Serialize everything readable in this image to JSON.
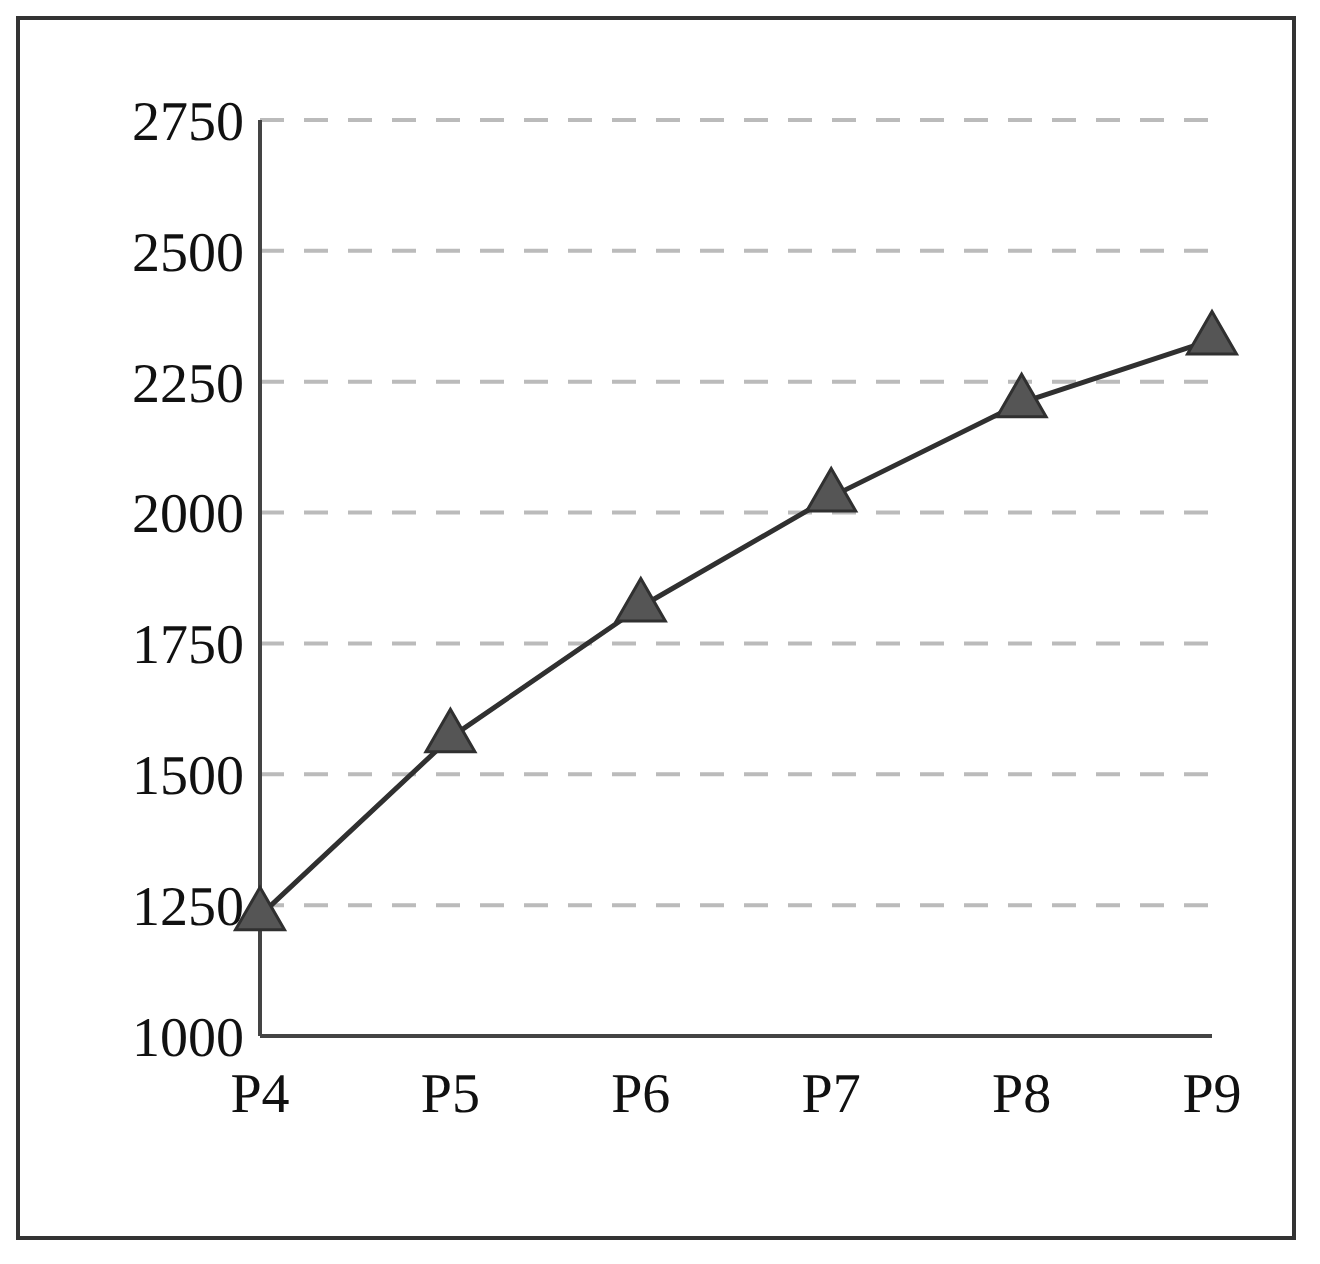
{
  "chart_data": {
    "type": "line",
    "categories": [
      "P4",
      "P5",
      "P6",
      "P7",
      "P8",
      "P9"
    ],
    "series": [
      {
        "color": "#303030",
        "values": [
          1230,
          1570,
          1820,
          2030,
          2210,
          2330
        ]
      }
    ],
    "ylim": [
      1000,
      2750
    ],
    "yticks": [
      1000,
      1250,
      1500,
      1750,
      2000,
      2250,
      2500,
      2750
    ],
    "grid": "y",
    "marker": "triangle",
    "line_style": "solid"
  }
}
